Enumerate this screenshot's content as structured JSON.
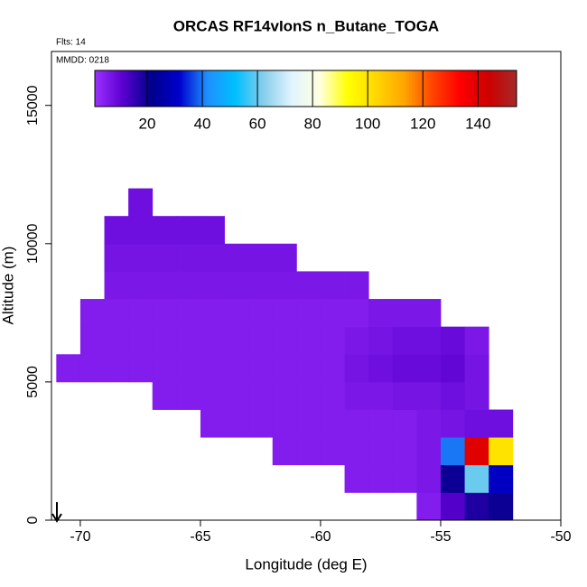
{
  "chart_data": {
    "type": "heatmap",
    "title": "ORCAS RF14vIonS n_Butane_TOGA",
    "annotations": [
      "Flts: 14",
      "MMDD: 0218"
    ],
    "xlabel": "Longitude (deg E)",
    "ylabel": "Altitude (m)",
    "xlim": [
      -71.2,
      -50
    ],
    "xticks": [
      -70,
      -65,
      -60,
      -55,
      -50
    ],
    "ylim": [
      0,
      16950
    ],
    "yticks": [
      0,
      5000,
      10000,
      15000
    ],
    "x_bins": [
      -71,
      -70,
      -69,
      -68,
      -67,
      -66,
      -65,
      -64,
      -63,
      -62,
      -61,
      -60,
      -59,
      -58,
      -57,
      -56,
      -55,
      -54,
      -53,
      -52,
      -51
    ],
    "y_bins": [
      0,
      1000,
      2000,
      3000,
      4000,
      5000,
      6000,
      7000,
      8000,
      9000,
      10000,
      11000,
      12000
    ],
    "values": [
      [
        null,
        null,
        null,
        null,
        null,
        null,
        null,
        null,
        null,
        null,
        null,
        null,
        null,
        null,
        null,
        5,
        12,
        18,
        20,
        null
      ],
      [
        null,
        null,
        null,
        null,
        null,
        null,
        null,
        null,
        null,
        null,
        null,
        null,
        5,
        5,
        5,
        6,
        20,
        60,
        30,
        null
      ],
      [
        null,
        null,
        null,
        null,
        null,
        null,
        null,
        null,
        null,
        5,
        5,
        5,
        5,
        5,
        5,
        6,
        40,
        140,
        100,
        null
      ],
      [
        null,
        null,
        null,
        null,
        null,
        null,
        5,
        5,
        5,
        5,
        5,
        5,
        5,
        5,
        5,
        6,
        7,
        8,
        8,
        null
      ],
      [
        null,
        null,
        null,
        null,
        5,
        5,
        5,
        5,
        5,
        5,
        5,
        5,
        6,
        6,
        7,
        7,
        8,
        7,
        null,
        null
      ],
      [
        5,
        5,
        5,
        5,
        5,
        5,
        5,
        5,
        5,
        5,
        5,
        5,
        7,
        8,
        9,
        9,
        10,
        7,
        null,
        null
      ],
      [
        null,
        5,
        5,
        5,
        5,
        5,
        5,
        5,
        5,
        5,
        5,
        5,
        6,
        7,
        8,
        8,
        9,
        6,
        null,
        null
      ],
      [
        null,
        5,
        5,
        5,
        5,
        5,
        5,
        5,
        5,
        5,
        5,
        5,
        5,
        6,
        6,
        6,
        null,
        null,
        null,
        null
      ],
      [
        null,
        null,
        6,
        6,
        6,
        6,
        6,
        6,
        6,
        6,
        6,
        6,
        6,
        null,
        null,
        null,
        null,
        null,
        null,
        null
      ],
      [
        null,
        null,
        7,
        7,
        7,
        7,
        7,
        7,
        7,
        7,
        null,
        null,
        null,
        null,
        null,
        null,
        null,
        null,
        null,
        null
      ],
      [
        null,
        null,
        8,
        8,
        8,
        8,
        8,
        null,
        null,
        null,
        null,
        null,
        null,
        null,
        null,
        null,
        null,
        null,
        null,
        null
      ],
      [
        null,
        null,
        null,
        8,
        null,
        null,
        null,
        null,
        null,
        null,
        null,
        null,
        null,
        null,
        null,
        null,
        null,
        null,
        null,
        null
      ]
    ],
    "colorbar": {
      "lim": [
        1,
        154
      ],
      "ticks": [
        20,
        40,
        60,
        80,
        100,
        120,
        140
      ],
      "colors": [
        "#9b30ff",
        "#5a00d0",
        "#00008b",
        "#0000cd",
        "#1e90ff",
        "#00bfff",
        "#87ceeb",
        "#e0f4ff",
        "#ffffe0",
        "#ffff00",
        "#ffd700",
        "#ffa500",
        "#ff4500",
        "#ff0000",
        "#cd0000",
        "#a52a2a"
      ]
    }
  }
}
